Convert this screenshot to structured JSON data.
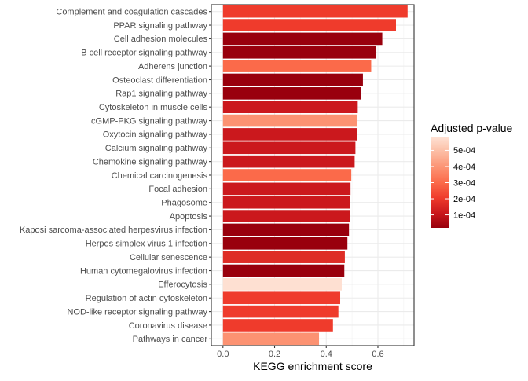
{
  "chart_data": {
    "type": "bar",
    "orientation": "horizontal",
    "xlabel": "KEGG enrichment score",
    "ylabel": "",
    "xlim": [
      -0.045,
      0.74
    ],
    "x_ticks": [
      0.0,
      0.2,
      0.4,
      0.6
    ],
    "x_tick_labels": [
      "0.0",
      "0.2",
      "0.4",
      "0.6"
    ],
    "grid": true,
    "categories": [
      "Complement and coagulation cascades",
      "PPAR signaling pathway",
      "Cell adhesion molecules",
      "B cell receptor signaling pathway",
      "Adherens junction",
      "Osteoclast differentiation",
      "Rap1 signaling pathway",
      "Cytoskeleton in muscle cells",
      "cGMP-PKG signaling pathway",
      "Oxytocin signaling pathway",
      "Calcium signaling pathway",
      "Chemokine signaling pathway",
      "Chemical carcinogenesis",
      "Focal adhesion",
      "Phagosome",
      "Apoptosis",
      "Kaposi sarcoma-associated herpesvirus infection",
      "Herpes simplex virus 1 infection",
      "Cellular senescence",
      "Human cytomegalovirus infection",
      "Efferocytosis",
      "Regulation of actin cytoskeleton",
      "NOD-like receptor signaling pathway",
      "Coronavirus disease",
      "Pathways in cancer"
    ],
    "values": [
      0.715,
      0.67,
      0.617,
      0.594,
      0.574,
      0.542,
      0.534,
      0.522,
      0.52,
      0.518,
      0.513,
      0.51,
      0.497,
      0.494,
      0.493,
      0.491,
      0.488,
      0.482,
      0.472,
      0.47,
      0.46,
      0.454,
      0.447,
      0.426,
      0.372
    ],
    "colors": [
      "#EF3B2C",
      "#EF3B2C",
      "#99000D",
      "#99000D",
      "#FB6A4A",
      "#99000D",
      "#99000D",
      "#CB181D",
      "#FC9272",
      "#CB181D",
      "#CB181D",
      "#CB181D",
      "#FB6A4A",
      "#CB181D",
      "#CB181D",
      "#CB181D",
      "#99000D",
      "#99000D",
      "#DE2D26",
      "#99000D",
      "#FEE0D2",
      "#EF3B2C",
      "#EF3B2C",
      "#EF3B2C",
      "#FC9272"
    ],
    "legend": {
      "title": "Adjusted p-value",
      "placement": "right",
      "type": "colorbar",
      "range": [
        2e-05,
        0.00058
      ],
      "ticks": [
        0.0001,
        0.0002,
        0.0003,
        0.0004,
        0.0005
      ],
      "tick_labels": [
        "1e-04",
        "2e-04",
        "3e-04",
        "4e-04",
        "5e-04"
      ],
      "gradient": [
        "#99000D",
        "#CB181D",
        "#EF3B2C",
        "#FB6A4A",
        "#FC9272",
        "#FCBBA1",
        "#FEE0D2"
      ]
    }
  }
}
